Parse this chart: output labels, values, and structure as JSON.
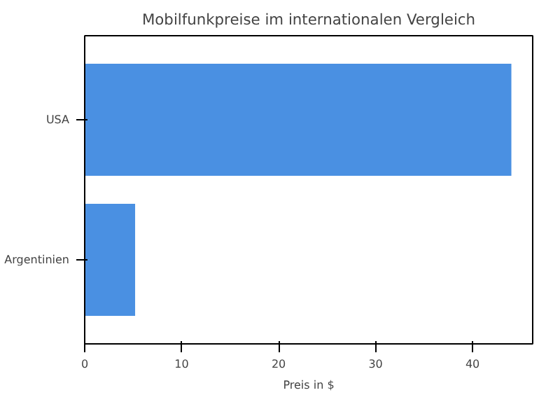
{
  "chart_data": {
    "type": "bar",
    "orientation": "horizontal",
    "title": "Mobilfunkpreise im internationalen Vergleich",
    "xlabel": "Preis in $",
    "categories": [
      "USA",
      "Argentinien"
    ],
    "values": [
      44,
      5.2
    ],
    "color": "#4a90e2",
    "xlim": [
      0,
      46.2
    ],
    "xticks": [
      0,
      10,
      20,
      30,
      40
    ],
    "grid": false
  }
}
